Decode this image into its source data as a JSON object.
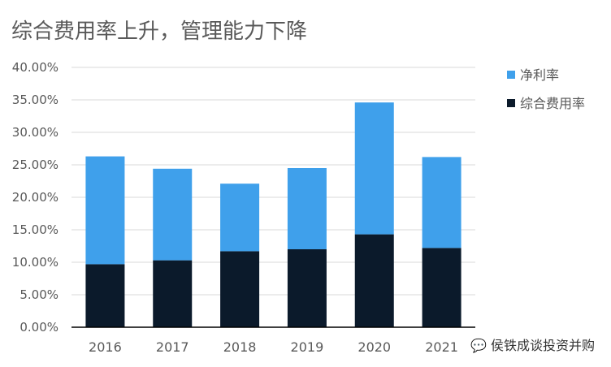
{
  "title": "综合费用率上升，管理能力下降",
  "watermark": "侯铁成谈投资并购",
  "colors": {
    "net_margin": "#3FA0EB",
    "expense_ratio": "#0B1A2B",
    "axis": "#000000",
    "grid": "#D9D9D9",
    "text": "#595959"
  },
  "chart_data": {
    "type": "bar",
    "stacked": true,
    "categories": [
      "2016",
      "2017",
      "2018",
      "2019",
      "2020",
      "2021"
    ],
    "series": [
      {
        "name": "综合费用率",
        "values": [
          9.7,
          10.3,
          11.7,
          12.0,
          14.3,
          12.2
        ]
      },
      {
        "name": "净利率",
        "values": [
          16.6,
          14.1,
          10.4,
          12.5,
          20.3,
          14.0
        ]
      }
    ],
    "ylim": [
      0,
      40
    ],
    "yticks": [
      "0.00%",
      "5.00%",
      "10.00%",
      "15.00%",
      "20.00%",
      "25.00%",
      "30.00%",
      "35.00%",
      "40.00%"
    ],
    "grid": true,
    "legend_position": "right",
    "legend_order": [
      "净利率",
      "综合费用率"
    ]
  }
}
